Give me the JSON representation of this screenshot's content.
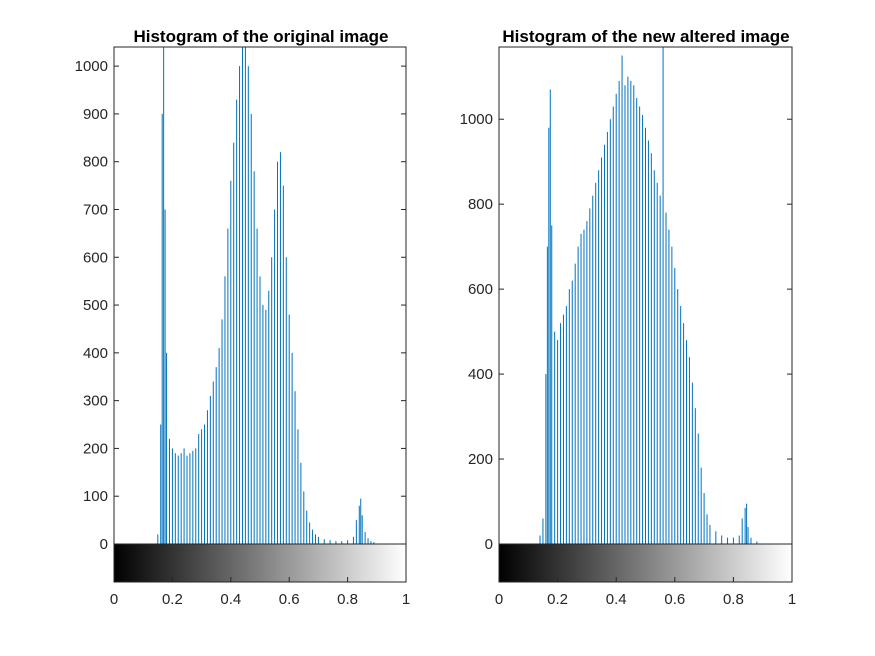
{
  "chart_data": [
    {
      "type": "bar",
      "title": "Histogram of the original image",
      "xlabel": "",
      "ylabel": "",
      "xlim": [
        0,
        1
      ],
      "ylim": [
        0,
        1040
      ],
      "yticks": [
        0,
        100,
        200,
        300,
        400,
        500,
        600,
        700,
        800,
        900,
        1000
      ],
      "ytick_labels": [
        "0",
        "100",
        "200",
        "300",
        "400",
        "500",
        "600",
        "700",
        "800",
        "900",
        "1000"
      ],
      "xticks": [
        0,
        0.2,
        0.4,
        0.6,
        0.8,
        1
      ],
      "xtick_labels": [
        "0",
        "0.2",
        "0.4",
        "0.6",
        "0.8",
        "1"
      ],
      "bar_color": "#0072bd",
      "grayscale_colorbar": true,
      "bins": [
        [
          0.15,
          20
        ],
        [
          0.16,
          250
        ],
        [
          0.165,
          900
        ],
        [
          0.17,
          1040
        ],
        [
          0.175,
          700
        ],
        [
          0.18,
          400
        ],
        [
          0.19,
          220
        ],
        [
          0.2,
          200
        ],
        [
          0.21,
          190
        ],
        [
          0.22,
          185
        ],
        [
          0.23,
          190
        ],
        [
          0.24,
          200
        ],
        [
          0.25,
          185
        ],
        [
          0.26,
          190
        ],
        [
          0.27,
          195
        ],
        [
          0.28,
          200
        ],
        [
          0.29,
          230
        ],
        [
          0.3,
          240
        ],
        [
          0.31,
          250
        ],
        [
          0.32,
          280
        ],
        [
          0.33,
          310
        ],
        [
          0.34,
          340
        ],
        [
          0.35,
          370
        ],
        [
          0.36,
          410
        ],
        [
          0.37,
          470
        ],
        [
          0.38,
          560
        ],
        [
          0.39,
          660
        ],
        [
          0.4,
          760
        ],
        [
          0.41,
          840
        ],
        [
          0.42,
          930
        ],
        [
          0.43,
          1000
        ],
        [
          0.44,
          1040
        ],
        [
          0.45,
          1040
        ],
        [
          0.46,
          1000
        ],
        [
          0.47,
          900
        ],
        [
          0.48,
          780
        ],
        [
          0.49,
          660
        ],
        [
          0.5,
          560
        ],
        [
          0.51,
          500
        ],
        [
          0.52,
          490
        ],
        [
          0.53,
          530
        ],
        [
          0.54,
          600
        ],
        [
          0.55,
          700
        ],
        [
          0.56,
          800
        ],
        [
          0.57,
          820
        ],
        [
          0.58,
          750
        ],
        [
          0.59,
          600
        ],
        [
          0.6,
          480
        ],
        [
          0.61,
          400
        ],
        [
          0.62,
          320
        ],
        [
          0.63,
          240
        ],
        [
          0.64,
          170
        ],
        [
          0.65,
          110
        ],
        [
          0.66,
          70
        ],
        [
          0.67,
          45
        ],
        [
          0.68,
          30
        ],
        [
          0.69,
          20
        ],
        [
          0.7,
          15
        ],
        [
          0.72,
          10
        ],
        [
          0.74,
          8
        ],
        [
          0.76,
          6
        ],
        [
          0.78,
          6
        ],
        [
          0.8,
          8
        ],
        [
          0.82,
          15
        ],
        [
          0.83,
          50
        ],
        [
          0.84,
          80
        ],
        [
          0.845,
          95
        ],
        [
          0.85,
          60
        ],
        [
          0.86,
          25
        ],
        [
          0.87,
          12
        ],
        [
          0.88,
          6
        ],
        [
          0.89,
          4
        ]
      ]
    },
    {
      "type": "bar",
      "title": "Histogram of the new altered image",
      "xlabel": "",
      "ylabel": "",
      "xlim": [
        0,
        1
      ],
      "ylim": [
        0,
        1170
      ],
      "yticks": [
        0,
        200,
        400,
        600,
        800,
        1000
      ],
      "ytick_labels": [
        "0",
        "200",
        "400",
        "600",
        "800",
        "1000"
      ],
      "xticks": [
        0,
        0.2,
        0.4,
        0.6,
        0.8,
        1
      ],
      "xtick_labels": [
        "0",
        "0.2",
        "0.4",
        "0.6",
        "0.8",
        "1"
      ],
      "bar_color": "#0072bd",
      "grayscale_colorbar": true,
      "bins": [
        [
          0.14,
          20
        ],
        [
          0.15,
          60
        ],
        [
          0.16,
          400
        ],
        [
          0.165,
          700
        ],
        [
          0.17,
          980
        ],
        [
          0.175,
          1070
        ],
        [
          0.18,
          750
        ],
        [
          0.19,
          500
        ],
        [
          0.2,
          480
        ],
        [
          0.21,
          520
        ],
        [
          0.22,
          540
        ],
        [
          0.23,
          560
        ],
        [
          0.24,
          600
        ],
        [
          0.25,
          620
        ],
        [
          0.26,
          660
        ],
        [
          0.27,
          700
        ],
        [
          0.28,
          730
        ],
        [
          0.29,
          740
        ],
        [
          0.3,
          760
        ],
        [
          0.31,
          790
        ],
        [
          0.32,
          820
        ],
        [
          0.33,
          850
        ],
        [
          0.34,
          880
        ],
        [
          0.35,
          910
        ],
        [
          0.36,
          940
        ],
        [
          0.37,
          970
        ],
        [
          0.38,
          1000
        ],
        [
          0.39,
          1030
        ],
        [
          0.4,
          1060
        ],
        [
          0.41,
          1090
        ],
        [
          0.42,
          1150
        ],
        [
          0.43,
          1080
        ],
        [
          0.44,
          1100
        ],
        [
          0.45,
          1090
        ],
        [
          0.46,
          1080
        ],
        [
          0.47,
          1050
        ],
        [
          0.48,
          1030
        ],
        [
          0.49,
          1010
        ],
        [
          0.5,
          980
        ],
        [
          0.51,
          950
        ],
        [
          0.52,
          920
        ],
        [
          0.53,
          880
        ],
        [
          0.54,
          850
        ],
        [
          0.55,
          820
        ],
        [
          0.56,
          1170
        ],
        [
          0.57,
          780
        ],
        [
          0.58,
          740
        ],
        [
          0.59,
          700
        ],
        [
          0.6,
          650
        ],
        [
          0.61,
          600
        ],
        [
          0.62,
          560
        ],
        [
          0.63,
          520
        ],
        [
          0.64,
          480
        ],
        [
          0.65,
          440
        ],
        [
          0.66,
          380
        ],
        [
          0.67,
          320
        ],
        [
          0.68,
          260
        ],
        [
          0.69,
          180
        ],
        [
          0.7,
          120
        ],
        [
          0.71,
          70
        ],
        [
          0.72,
          45
        ],
        [
          0.74,
          30
        ],
        [
          0.76,
          20
        ],
        [
          0.78,
          15
        ],
        [
          0.8,
          15
        ],
        [
          0.82,
          20
        ],
        [
          0.83,
          60
        ],
        [
          0.84,
          85
        ],
        [
          0.845,
          95
        ],
        [
          0.85,
          40
        ],
        [
          0.86,
          15
        ],
        [
          0.88,
          6
        ]
      ]
    }
  ]
}
